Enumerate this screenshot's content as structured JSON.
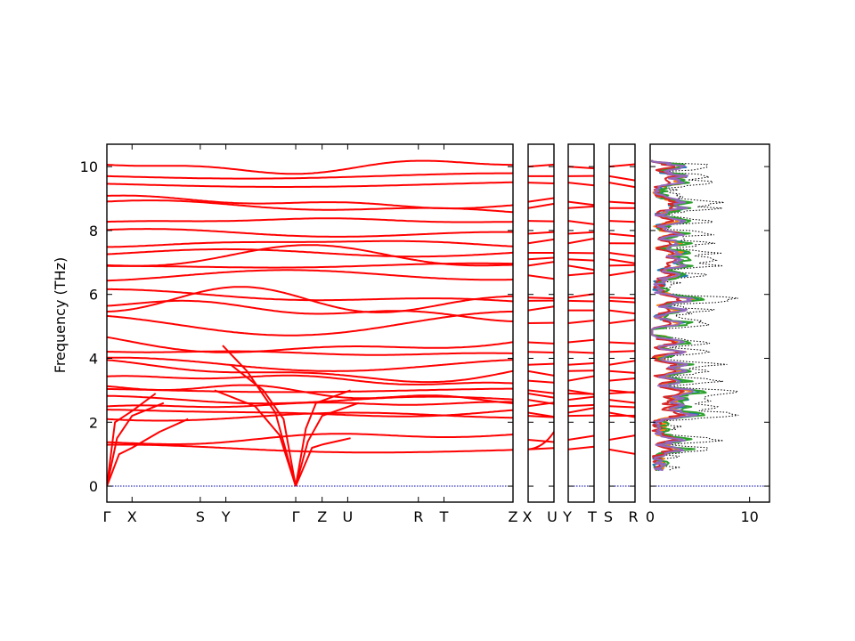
{
  "chart_data": {
    "type": "line",
    "ylabel": "Frequency (THz)",
    "ylim": [
      -0.5,
      10.7
    ],
    "yticks": [
      "0",
      "2",
      "4",
      "6",
      "8",
      "10"
    ],
    "band_panels": [
      {
        "labels": [
          "Γ",
          "X",
          "S",
          "Y",
          "Γ",
          "Z",
          "U",
          "R",
          "T",
          "Z"
        ],
        "positions": [
          0,
          0.062,
          0.23,
          0.293,
          0.465,
          0.53,
          0.593,
          0.767,
          0.83,
          1.0
        ]
      },
      {
        "labels": [
          "X",
          "U"
        ],
        "positions": [
          0,
          1
        ]
      },
      {
        "labels": [
          "Y",
          "T"
        ],
        "positions": [
          0,
          1
        ]
      },
      {
        "labels": [
          "S",
          "R"
        ],
        "positions": [
          0,
          1
        ]
      }
    ],
    "dos_panel": {
      "xlim": [
        0,
        12
      ],
      "xticks": [
        "0",
        "10"
      ],
      "series_colors": [
        "#1f77b4",
        "#ff7f0e",
        "#2ca02c",
        "#d62728",
        "#9467bd",
        "#000000"
      ]
    },
    "flat_levels": [
      1.15,
      1.45,
      2.2,
      2.3,
      2.5,
      2.7,
      2.9,
      3.0,
      3.3,
      3.6,
      3.8,
      4.2,
      4.5,
      5.1,
      5.5,
      5.8,
      5.9,
      6.6,
      6.9,
      7.1,
      7.3,
      7.6,
      7.9,
      8.3,
      8.7,
      8.9,
      9.5,
      9.7,
      10.0
    ]
  }
}
